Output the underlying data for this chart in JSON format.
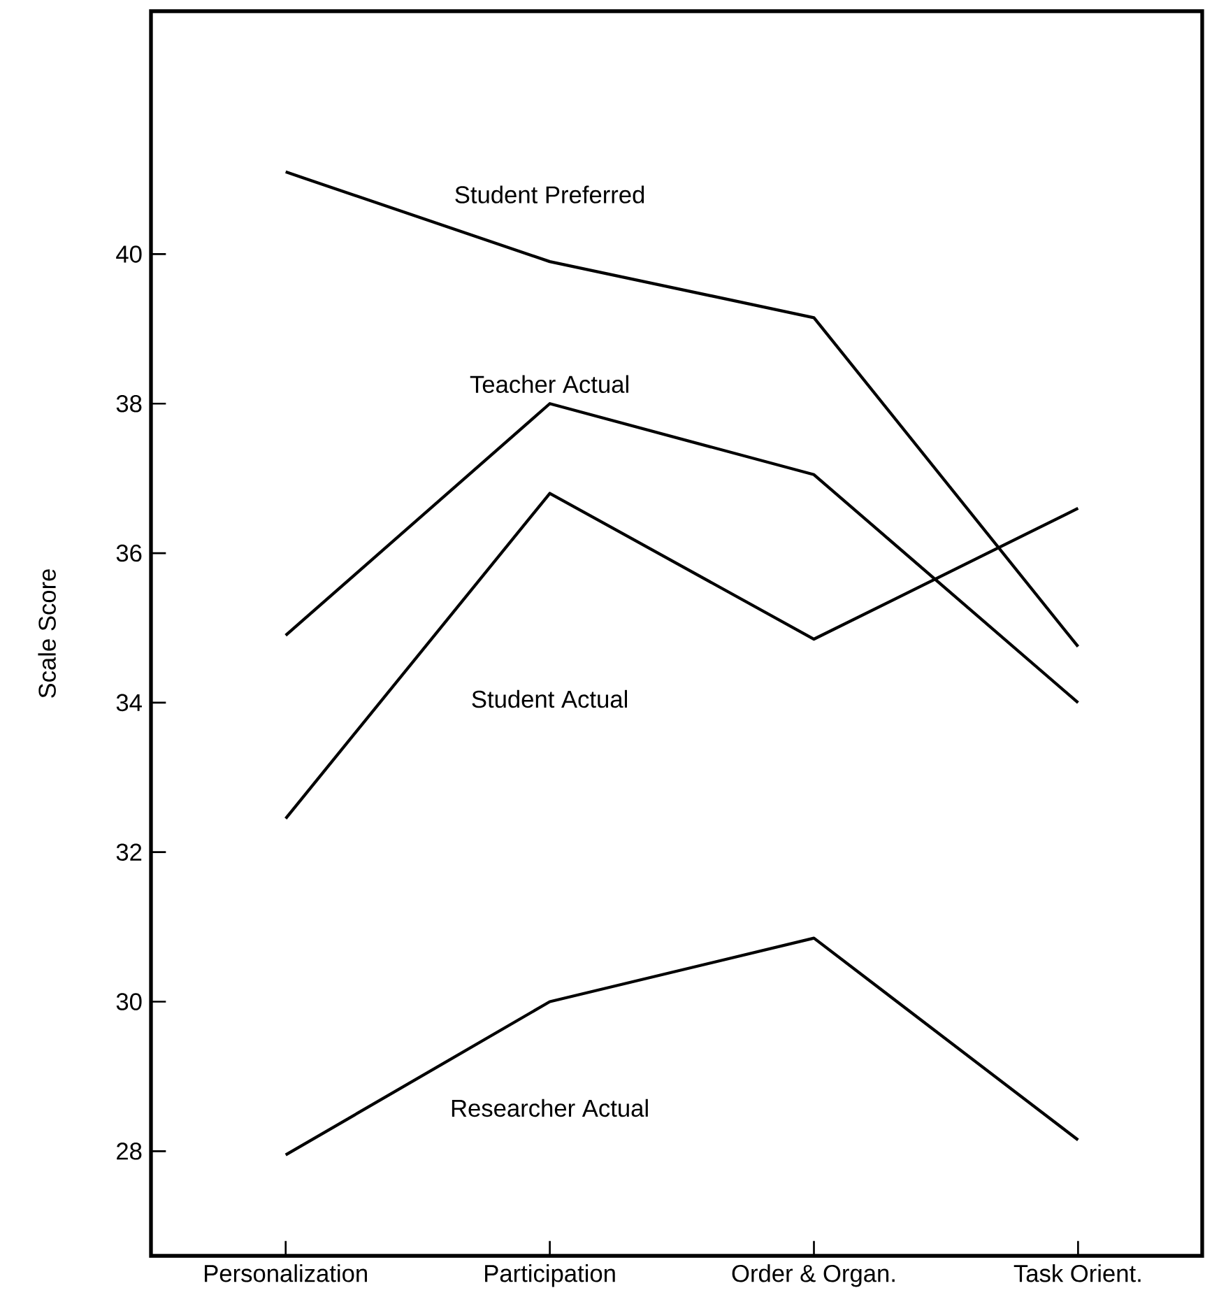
{
  "chart_data": {
    "type": "line",
    "ylabel": "Scale Score",
    "categories": [
      "Personalization",
      "Participation",
      "Order & Organ.",
      "Task Orient."
    ],
    "series": [
      {
        "name": "Student Preferred",
        "color": "#000000",
        "values": [
          41.1,
          39.9,
          39.15,
          34.75
        ]
      },
      {
        "name": "Teacher Actual",
        "color": "#000000",
        "values": [
          34.9,
          38.0,
          37.05,
          34.0
        ]
      },
      {
        "name": "Student Actual",
        "color": "#000000",
        "values": [
          32.45,
          36.8,
          34.85,
          36.6
        ]
      },
      {
        "name": "Researcher Actual",
        "color": "#000000",
        "values": [
          27.95,
          30.0,
          30.85,
          28.15
        ]
      }
    ],
    "ylim": [
      26.6,
      43.25
    ],
    "yticks": [
      28,
      30,
      32,
      34,
      36,
      38,
      40
    ],
    "grid": false,
    "legend": false,
    "marker": "none",
    "line_style": "solid"
  }
}
